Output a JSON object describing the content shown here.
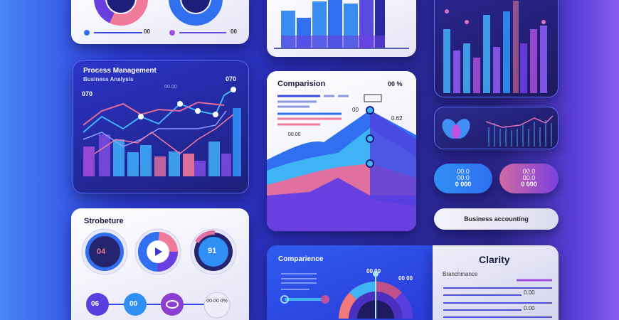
{
  "top_left": {
    "slider_a": "00",
    "slider_b": "00"
  },
  "process": {
    "title": "Process Management",
    "subtitle": "Business Analysis",
    "label_right": "070",
    "label_left": "070",
    "label_mid": "00.00"
  },
  "comparision": {
    "title": "Comparision",
    "value": "00 %",
    "label_a": "00",
    "label_b": "0.62",
    "label_c": "00.00"
  },
  "pills": [
    {
      "line1": "00.0",
      "line2": "00.0",
      "line3": "0 000"
    },
    {
      "line1": "00.0",
      "line2": "00.0",
      "line3": "0 000"
    }
  ],
  "overview_pill": {
    "label": "Business accounting"
  },
  "structure": {
    "title": "Strobeture",
    "gauges": [
      "04",
      "",
      "91"
    ],
    "steps": [
      "06",
      "00",
      "",
      "00.00 0%"
    ]
  },
  "comparience": {
    "title": "Comparience",
    "label_a": "00 00",
    "label_b": "00 00"
  },
  "clarity": {
    "title": "Clarity",
    "subtitle": "Branchmance",
    "value_a": "0.00",
    "value_b": "0.00"
  },
  "colors": {
    "blue": "#2f6ff0",
    "purple": "#7b3fe0",
    "pink": "#f07a9a",
    "cyan": "#3fb4f5",
    "navy": "#1d1f7a"
  }
}
